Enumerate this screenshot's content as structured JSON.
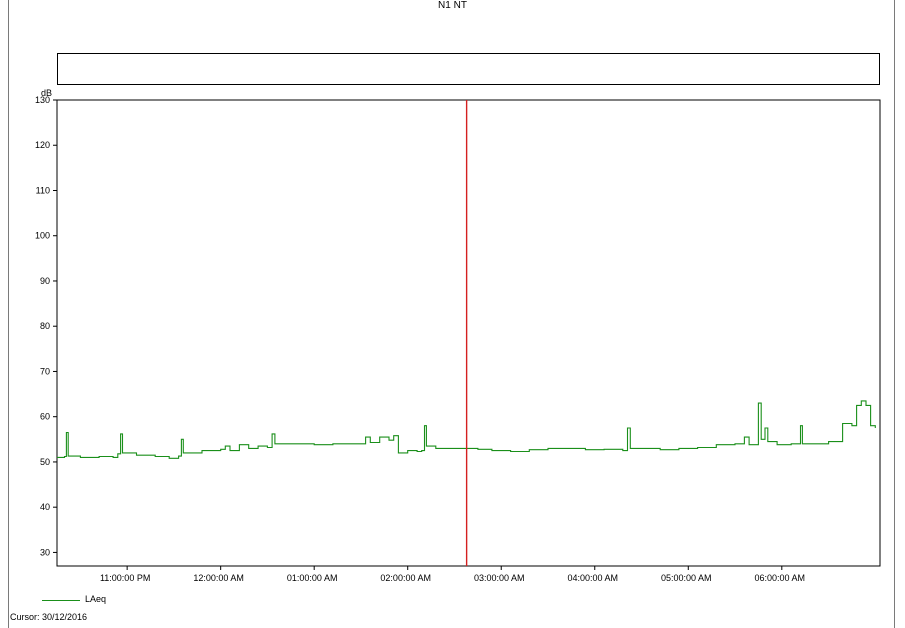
{
  "chart_data": {
    "type": "line",
    "title": "N1 NT",
    "ylabel": "dB",
    "xlabel": "",
    "ylim": [
      27,
      130
    ],
    "xlim": [
      22.25,
      31.05
    ],
    "y_ticks": [
      30,
      40,
      50,
      60,
      70,
      80,
      90,
      100,
      110,
      120,
      130
    ],
    "x_ticks": [
      {
        "value": 23,
        "label": "11:00:00 PM"
      },
      {
        "value": 24,
        "label": "12:00:00 AM"
      },
      {
        "value": 25,
        "label": "01:00:00 AM"
      },
      {
        "value": 26,
        "label": "02:00:00 AM"
      },
      {
        "value": 27,
        "label": "03:00:00 AM"
      },
      {
        "value": 28,
        "label": "04:00:00 AM"
      },
      {
        "value": 29,
        "label": "05:00:00 AM"
      },
      {
        "value": 30,
        "label": "06:00:00 AM"
      }
    ],
    "cursor_x": 26.63,
    "series": [
      {
        "name": "LAeq",
        "color": "#1a8f1a",
        "points": [
          [
            22.25,
            51.0
          ],
          [
            22.33,
            51.2
          ],
          [
            22.35,
            56.5
          ],
          [
            22.37,
            51.3
          ],
          [
            22.5,
            51.0
          ],
          [
            22.7,
            51.2
          ],
          [
            22.85,
            51.0
          ],
          [
            22.9,
            51.8
          ],
          [
            22.93,
            56.2
          ],
          [
            22.95,
            52.0
          ],
          [
            23.1,
            51.5
          ],
          [
            23.3,
            51.2
          ],
          [
            23.45,
            50.8
          ],
          [
            23.55,
            51.3
          ],
          [
            23.58,
            55.0
          ],
          [
            23.6,
            52.0
          ],
          [
            23.8,
            52.5
          ],
          [
            24.0,
            52.8
          ],
          [
            24.05,
            53.5
          ],
          [
            24.1,
            52.5
          ],
          [
            24.2,
            53.8
          ],
          [
            24.3,
            53.0
          ],
          [
            24.4,
            53.5
          ],
          [
            24.5,
            53.2
          ],
          [
            24.55,
            56.2
          ],
          [
            24.58,
            54.0
          ],
          [
            24.7,
            54.0
          ],
          [
            25.0,
            53.8
          ],
          [
            25.2,
            54.0
          ],
          [
            25.5,
            54.0
          ],
          [
            25.55,
            55.5
          ],
          [
            25.6,
            54.3
          ],
          [
            25.7,
            55.5
          ],
          [
            25.8,
            54.8
          ],
          [
            25.85,
            55.8
          ],
          [
            25.9,
            52.0
          ],
          [
            26.0,
            52.5
          ],
          [
            26.1,
            52.3
          ],
          [
            26.15,
            52.5
          ],
          [
            26.18,
            58.0
          ],
          [
            26.2,
            53.5
          ],
          [
            26.3,
            53.0
          ],
          [
            26.5,
            53.0
          ],
          [
            26.6,
            53.0
          ],
          [
            26.75,
            52.8
          ],
          [
            26.9,
            52.5
          ],
          [
            27.0,
            52.5
          ],
          [
            27.1,
            52.3
          ],
          [
            27.3,
            52.7
          ],
          [
            27.5,
            53.0
          ],
          [
            27.7,
            53.0
          ],
          [
            27.9,
            52.7
          ],
          [
            28.1,
            52.8
          ],
          [
            28.3,
            52.5
          ],
          [
            28.35,
            57.5
          ],
          [
            28.38,
            53.0
          ],
          [
            28.5,
            53.0
          ],
          [
            28.7,
            52.7
          ],
          [
            28.9,
            53.0
          ],
          [
            29.1,
            53.2
          ],
          [
            29.3,
            53.8
          ],
          [
            29.5,
            54.0
          ],
          [
            29.6,
            55.5
          ],
          [
            29.65,
            53.8
          ],
          [
            29.75,
            63.0
          ],
          [
            29.78,
            55.0
          ],
          [
            29.82,
            57.5
          ],
          [
            29.85,
            54.5
          ],
          [
            29.95,
            53.8
          ],
          [
            30.1,
            54.0
          ],
          [
            30.2,
            58.0
          ],
          [
            30.22,
            54.0
          ],
          [
            30.4,
            54.0
          ],
          [
            30.5,
            54.5
          ],
          [
            30.6,
            54.5
          ],
          [
            30.65,
            58.5
          ],
          [
            30.75,
            58.0
          ],
          [
            30.8,
            62.5
          ],
          [
            30.85,
            63.5
          ],
          [
            30.9,
            62.5
          ],
          [
            30.95,
            58.0
          ],
          [
            31.0,
            57.5
          ]
        ]
      }
    ]
  },
  "legend_label": "LAeq",
  "cursor_label": "Cursor: 30/12/2016"
}
